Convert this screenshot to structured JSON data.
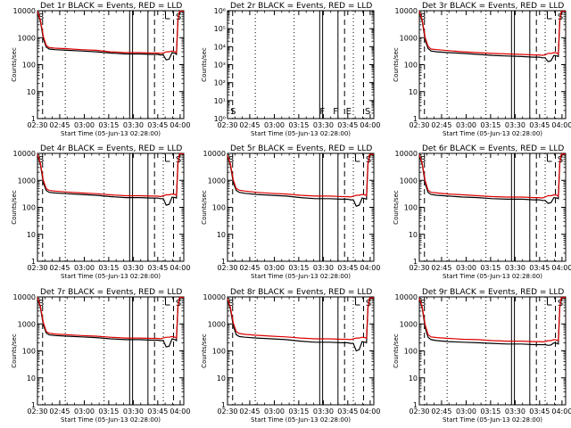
{
  "colors": {
    "events": "#000000",
    "lld": "#dd0000",
    "background": "#ffffff"
  },
  "x_ticks": [
    "02:30",
    "02:45",
    "03:00",
    "03:15",
    "03:30",
    "03:45",
    "04:00"
  ],
  "x_label": "Start Time (05-Jun-13 02:28:00)",
  "y_label": "Counts/sec",
  "chart_data": [
    {
      "type": "line",
      "title": "Det 1r BLACK = Events, RED = LLD",
      "ylog": true,
      "ylim": [
        1,
        10000
      ],
      "xlim": [
        0,
        100
      ],
      "yticks": [
        "1",
        "10",
        "100",
        "1000",
        "10000"
      ],
      "flags": [
        "S",
        "S"
      ],
      "series": [
        {
          "name": "Events",
          "color": "#000000",
          "x": [
            0,
            2,
            4,
            6,
            8,
            12,
            20,
            30,
            40,
            50,
            60,
            70,
            78,
            82,
            84,
            86,
            88,
            90,
            92,
            94,
            95,
            96,
            97,
            98,
            100
          ],
          "values": [
            9000,
            4000,
            900,
            450,
            380,
            360,
            340,
            320,
            300,
            270,
            250,
            250,
            240,
            240,
            230,
            230,
            150,
            160,
            280,
            260,
            240,
            4000,
            9000,
            9500,
            9000
          ]
        },
        {
          "name": "LLD",
          "color": "#dd0000",
          "x": [
            0,
            2,
            4,
            6,
            8,
            12,
            20,
            30,
            40,
            50,
            60,
            70,
            78,
            82,
            84,
            86,
            88,
            90,
            92,
            94,
            95,
            96,
            97,
            98,
            100
          ],
          "values": [
            9500,
            4500,
            1100,
            520,
            430,
            410,
            390,
            360,
            340,
            300,
            280,
            280,
            270,
            270,
            260,
            270,
            300,
            300,
            320,
            300,
            280,
            4500,
            9500,
            9800,
            9500
          ]
        }
      ]
    },
    {
      "type": "line",
      "title": "Det 2r BLACK = Events, RED = LLD",
      "ylog": true,
      "ylim": [
        1,
        1000000
      ],
      "xlim": [
        0,
        100
      ],
      "yticks": [
        "10⁰",
        "10¹",
        "10²",
        "10³",
        "10⁴",
        "10⁵",
        "10⁶"
      ],
      "flags": [
        "S",
        "F",
        "F",
        "E",
        "S"
      ],
      "series": []
    },
    {
      "type": "line",
      "title": "Det 3r BLACK = Events, RED = LLD",
      "ylog": true,
      "ylim": [
        1,
        10000
      ],
      "xlim": [
        0,
        100
      ],
      "yticks": [
        "1",
        "10",
        "100",
        "1000",
        "10000"
      ],
      "flags": [
        "S",
        "S"
      ],
      "series": [
        {
          "name": "Events",
          "color": "#000000",
          "x": [
            0,
            2,
            4,
            6,
            8,
            12,
            20,
            30,
            40,
            50,
            60,
            70,
            78,
            82,
            84,
            86,
            88,
            90,
            92,
            94,
            95,
            96,
            97,
            98,
            100
          ],
          "values": [
            9000,
            4000,
            800,
            400,
            320,
            300,
            280,
            260,
            240,
            220,
            210,
            200,
            190,
            190,
            180,
            180,
            130,
            140,
            220,
            210,
            200,
            4000,
            9000,
            9500,
            9000
          ]
        },
        {
          "name": "LLD",
          "color": "#dd0000",
          "x": [
            0,
            2,
            4,
            6,
            8,
            12,
            20,
            30,
            40,
            50,
            60,
            70,
            78,
            82,
            84,
            86,
            88,
            90,
            92,
            94,
            95,
            96,
            97,
            98,
            100
          ],
          "values": [
            9500,
            4500,
            1000,
            480,
            380,
            360,
            330,
            300,
            280,
            260,
            250,
            240,
            230,
            230,
            220,
            230,
            260,
            260,
            280,
            270,
            250,
            4500,
            9500,
            9800,
            9500
          ]
        }
      ]
    },
    {
      "type": "line",
      "title": "Det 4r BLACK = Events, RED = LLD",
      "ylog": true,
      "ylim": [
        1,
        10000
      ],
      "xlim": [
        0,
        100
      ],
      "yticks": [
        "1",
        "10",
        "100",
        "1000",
        "10000"
      ],
      "flags": [
        "S",
        "S"
      ],
      "series": [
        {
          "name": "Events",
          "color": "#000000",
          "x": [
            0,
            2,
            4,
            6,
            8,
            12,
            20,
            30,
            40,
            50,
            60,
            70,
            78,
            82,
            84,
            86,
            88,
            90,
            92,
            94,
            95,
            96,
            97,
            98,
            100
          ],
          "values": [
            9000,
            3800,
            800,
            420,
            360,
            340,
            320,
            300,
            280,
            250,
            230,
            230,
            220,
            220,
            210,
            210,
            120,
            130,
            240,
            230,
            220,
            4000,
            9000,
            9500,
            9000
          ]
        },
        {
          "name": "LLD",
          "color": "#dd0000",
          "x": [
            0,
            2,
            4,
            6,
            8,
            12,
            20,
            30,
            40,
            50,
            60,
            70,
            78,
            82,
            84,
            86,
            88,
            90,
            92,
            94,
            95,
            96,
            97,
            98,
            100
          ],
          "values": [
            9500,
            4300,
            1000,
            500,
            420,
            400,
            370,
            340,
            320,
            290,
            270,
            270,
            260,
            260,
            250,
            270,
            290,
            290,
            310,
            300,
            280,
            4500,
            9500,
            9800,
            9500
          ]
        }
      ]
    },
    {
      "type": "line",
      "title": "Det 5r BLACK = Events, RED = LLD",
      "ylog": true,
      "ylim": [
        1,
        10000
      ],
      "xlim": [
        0,
        100
      ],
      "yticks": [
        "1",
        "10",
        "100",
        "1000",
        "10000"
      ],
      "flags": [
        "S",
        "S"
      ],
      "series": [
        {
          "name": "Events",
          "color": "#000000",
          "x": [
            0,
            2,
            4,
            6,
            8,
            12,
            20,
            30,
            40,
            50,
            60,
            70,
            78,
            82,
            84,
            86,
            88,
            90,
            92,
            94,
            95,
            96,
            97,
            98,
            100
          ],
          "values": [
            8000,
            3500,
            800,
            420,
            360,
            330,
            300,
            280,
            260,
            230,
            210,
            210,
            200,
            200,
            190,
            190,
            110,
            120,
            220,
            210,
            200,
            3800,
            8500,
            9000,
            8500
          ]
        },
        {
          "name": "LLD",
          "color": "#dd0000",
          "x": [
            0,
            2,
            4,
            6,
            8,
            12,
            20,
            30,
            40,
            50,
            60,
            70,
            78,
            82,
            84,
            86,
            88,
            90,
            92,
            94,
            95,
            96,
            97,
            98,
            100
          ],
          "values": [
            8500,
            4000,
            1000,
            500,
            430,
            400,
            360,
            330,
            310,
            280,
            260,
            260,
            250,
            250,
            240,
            260,
            280,
            280,
            300,
            290,
            270,
            4300,
            9000,
            9300,
            9000
          ]
        }
      ]
    },
    {
      "type": "line",
      "title": "Det 6r BLACK = Events, RED = LLD",
      "ylog": true,
      "ylim": [
        1,
        10000
      ],
      "xlim": [
        0,
        100
      ],
      "yticks": [
        "1",
        "10",
        "100",
        "1000",
        "10000"
      ],
      "flags": [
        "S",
        "S"
      ],
      "series": [
        {
          "name": "Events",
          "color": "#000000",
          "x": [
            0,
            2,
            4,
            6,
            8,
            12,
            20,
            30,
            40,
            50,
            60,
            70,
            78,
            82,
            84,
            86,
            88,
            90,
            92,
            94,
            95,
            96,
            97,
            98,
            100
          ],
          "values": [
            8500,
            3800,
            750,
            360,
            300,
            280,
            260,
            240,
            230,
            210,
            200,
            200,
            190,
            190,
            180,
            180,
            140,
            150,
            230,
            220,
            210,
            4000,
            8800,
            9200,
            8800
          ]
        },
        {
          "name": "LLD",
          "color": "#dd0000",
          "x": [
            0,
            2,
            4,
            6,
            8,
            12,
            20,
            30,
            40,
            50,
            60,
            70,
            78,
            82,
            84,
            86,
            88,
            90,
            92,
            94,
            95,
            96,
            97,
            98,
            100
          ],
          "values": [
            9000,
            4200,
            950,
            430,
            360,
            340,
            310,
            290,
            270,
            250,
            240,
            240,
            230,
            230,
            220,
            240,
            270,
            270,
            290,
            280,
            260,
            4400,
            9300,
            9600,
            9300
          ]
        }
      ]
    },
    {
      "type": "line",
      "title": "Det 7r BLACK = Events, RED = LLD",
      "ylog": true,
      "ylim": [
        1,
        10000
      ],
      "xlim": [
        0,
        100
      ],
      "yticks": [
        "1",
        "10",
        "100",
        "1000",
        "10000"
      ],
      "flags": [
        "S",
        "S"
      ],
      "series": [
        {
          "name": "Events",
          "color": "#000000",
          "x": [
            0,
            2,
            4,
            6,
            8,
            12,
            20,
            30,
            40,
            50,
            60,
            70,
            78,
            82,
            84,
            86,
            88,
            90,
            92,
            94,
            95,
            96,
            97,
            98,
            100
          ],
          "values": [
            9000,
            4000,
            900,
            460,
            390,
            370,
            350,
            330,
            310,
            280,
            260,
            260,
            250,
            250,
            240,
            240,
            140,
            150,
            280,
            260,
            240,
            4000,
            9000,
            9500,
            9000
          ]
        },
        {
          "name": "LLD",
          "color": "#dd0000",
          "x": [
            0,
            2,
            4,
            6,
            8,
            12,
            20,
            30,
            40,
            50,
            60,
            70,
            78,
            82,
            84,
            86,
            88,
            90,
            92,
            94,
            95,
            96,
            97,
            98,
            100
          ],
          "values": [
            9500,
            4500,
            1100,
            530,
            450,
            420,
            400,
            370,
            350,
            320,
            300,
            300,
            290,
            290,
            280,
            300,
            320,
            320,
            340,
            320,
            300,
            4500,
            9500,
            9800,
            9500
          ]
        }
      ]
    },
    {
      "type": "line",
      "title": "Det 8r BLACK = Events, RED = LLD",
      "ylog": true,
      "ylim": [
        1,
        10000
      ],
      "xlim": [
        0,
        100
      ],
      "yticks": [
        "1",
        "10",
        "100",
        "1000",
        "10000"
      ],
      "flags": [
        "S",
        "S"
      ],
      "series": [
        {
          "name": "Events",
          "color": "#000000",
          "x": [
            0,
            2,
            4,
            6,
            8,
            12,
            20,
            30,
            40,
            50,
            60,
            70,
            78,
            82,
            84,
            86,
            88,
            90,
            92,
            94,
            95,
            96,
            97,
            98,
            100
          ],
          "values": [
            8000,
            3500,
            800,
            400,
            340,
            320,
            300,
            280,
            260,
            230,
            210,
            210,
            200,
            200,
            190,
            190,
            100,
            110,
            220,
            210,
            200,
            3800,
            8500,
            9000,
            8500
          ]
        },
        {
          "name": "LLD",
          "color": "#dd0000",
          "x": [
            0,
            2,
            4,
            6,
            8,
            12,
            20,
            30,
            40,
            50,
            60,
            70,
            78,
            82,
            84,
            86,
            88,
            90,
            92,
            94,
            95,
            96,
            97,
            98,
            100
          ],
          "values": [
            8800,
            4000,
            1050,
            520,
            440,
            410,
            380,
            350,
            330,
            300,
            280,
            280,
            270,
            270,
            260,
            280,
            300,
            300,
            320,
            310,
            290,
            4300,
            9000,
            9300,
            9000
          ]
        }
      ]
    },
    {
      "type": "line",
      "title": "Det 9r BLACK = Events, RED = LLD",
      "ylog": true,
      "ylim": [
        1,
        10000
      ],
      "xlim": [
        0,
        100
      ],
      "yticks": [
        "1",
        "10",
        "100",
        "1000",
        "10000"
      ],
      "flags": [
        "S",
        "S"
      ],
      "series": [
        {
          "name": "Events",
          "color": "#000000",
          "x": [
            0,
            2,
            4,
            6,
            8,
            12,
            20,
            30,
            40,
            50,
            60,
            70,
            78,
            82,
            84,
            86,
            88,
            90,
            92,
            94,
            95,
            96,
            97,
            98,
            100
          ],
          "values": [
            8500,
            3800,
            700,
            320,
            260,
            240,
            220,
            210,
            200,
            190,
            180,
            180,
            170,
            170,
            170,
            170,
            160,
            165,
            200,
            190,
            180,
            3900,
            8800,
            9200,
            8800
          ]
        },
        {
          "name": "LLD",
          "color": "#dd0000",
          "x": [
            0,
            2,
            4,
            6,
            8,
            12,
            20,
            30,
            40,
            50,
            60,
            70,
            78,
            82,
            84,
            86,
            88,
            90,
            92,
            94,
            95,
            96,
            97,
            98,
            100
          ],
          "values": [
            9000,
            4200,
            900,
            400,
            330,
            310,
            290,
            270,
            260,
            240,
            230,
            230,
            220,
            220,
            215,
            220,
            240,
            240,
            260,
            250,
            240,
            4400,
            9300,
            9600,
            9300
          ]
        }
      ]
    }
  ]
}
